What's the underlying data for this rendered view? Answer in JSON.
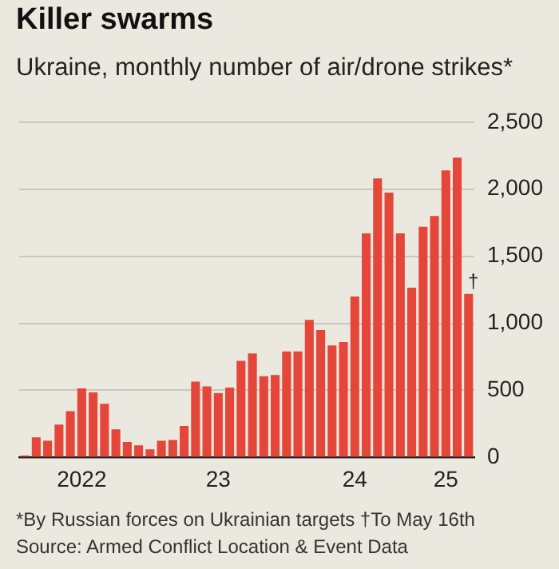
{
  "chart_data": {
    "type": "bar",
    "title": "Killer swarms",
    "subtitle": "Ukraine, monthly number of air/drone strikes*",
    "categories": [
      null,
      null,
      null,
      null,
      null,
      "2022",
      null,
      null,
      null,
      null,
      null,
      null,
      null,
      null,
      null,
      null,
      null,
      "23",
      null,
      null,
      null,
      null,
      null,
      null,
      null,
      null,
      null,
      null,
      null,
      "24",
      null,
      null,
      null,
      null,
      null,
      null,
      null,
      "25",
      null,
      null
    ],
    "values": [
      15,
      150,
      125,
      245,
      345,
      515,
      485,
      400,
      210,
      115,
      90,
      60,
      125,
      130,
      235,
      565,
      530,
      480,
      520,
      720,
      775,
      605,
      615,
      790,
      790,
      1025,
      950,
      835,
      860,
      1200,
      1670,
      2080,
      1975,
      1670,
      1265,
      1720,
      1800,
      2140,
      2235,
      1220
    ],
    "color": "#e5463a",
    "ylim": [
      0,
      2500
    ],
    "yticks": [
      0,
      {
        "value": 500,
        "label": "500"
      },
      {
        "value": 1000,
        "label": "1,000"
      },
      {
        "value": 1500,
        "label": "1,500"
      },
      {
        "value": 2000,
        "label": "2,000"
      },
      {
        "value": 2500,
        "label": "2,500"
      }
    ],
    "grid": "y",
    "annotations": [
      {
        "text": "†",
        "y": 1220
      },
      "*By Russian forces on Ukrainian targets   †To May 16th",
      "Source: Armed Conflict Location & Event Data"
    ]
  }
}
